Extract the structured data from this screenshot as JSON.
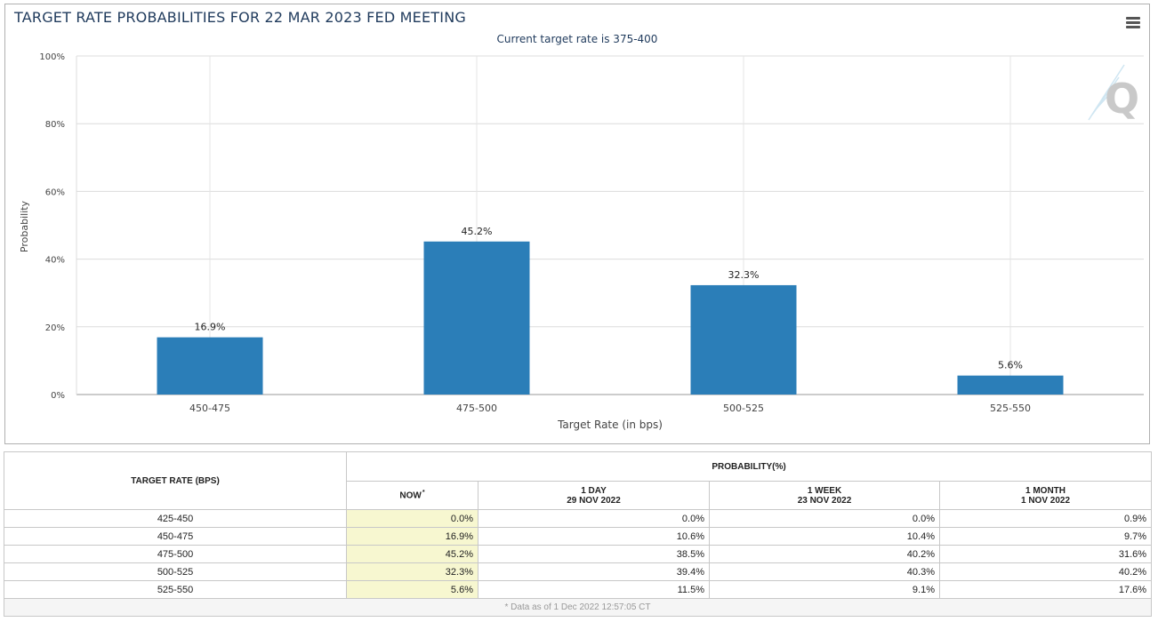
{
  "chart_title": "TARGET RATE PROBABILITIES FOR 22 MAR 2023 FED MEETING",
  "chart_data": {
    "type": "bar",
    "title": "TARGET RATE PROBABILITIES FOR 22 MAR 2023 FED MEETING",
    "subtitle": "Current target rate is 375-400",
    "categories": [
      "450-475",
      "475-500",
      "500-525",
      "525-550"
    ],
    "values": [
      16.9,
      45.2,
      32.3,
      5.6
    ],
    "data_labels": [
      "16.9%",
      "45.2%",
      "32.3%",
      "5.6%"
    ],
    "xlabel": "Target Rate (in bps)",
    "ylabel": "Probability",
    "ylim": [
      0,
      100
    ],
    "yticks": [
      "0%",
      "20%",
      "40%",
      "60%",
      "80%",
      "100%"
    ],
    "grid": true,
    "bar_color": "#2b7eb8"
  },
  "table": {
    "rate_header": "TARGET RATE (BPS)",
    "prob_header": "PROBABILITY(%)",
    "columns": [
      {
        "line1": "NOW",
        "line2": "",
        "marker": "*"
      },
      {
        "line1": "1 DAY",
        "line2": "29 NOV 2022",
        "marker": ""
      },
      {
        "line1": "1 WEEK",
        "line2": "23 NOV 2022",
        "marker": ""
      },
      {
        "line1": "1 MONTH",
        "line2": "1 NOV 2022",
        "marker": ""
      }
    ],
    "rows": [
      {
        "rate": "425-450",
        "now": "0.0%",
        "day": "0.0%",
        "week": "0.0%",
        "month": "0.9%"
      },
      {
        "rate": "450-475",
        "now": "16.9%",
        "day": "10.6%",
        "week": "10.4%",
        "month": "9.7%"
      },
      {
        "rate": "475-500",
        "now": "45.2%",
        "day": "38.5%",
        "week": "40.2%",
        "month": "31.6%"
      },
      {
        "rate": "500-525",
        "now": "32.3%",
        "day": "39.4%",
        "week": "40.3%",
        "month": "40.2%"
      },
      {
        "rate": "525-550",
        "now": "5.6%",
        "day": "11.5%",
        "week": "9.1%",
        "month": "17.6%"
      }
    ],
    "footnote": "* Data as of 1 Dec 2022 12:57:05 CT"
  },
  "icons": {
    "menu": "hamburger-menu-icon",
    "watermark": "q-logo-watermark"
  }
}
